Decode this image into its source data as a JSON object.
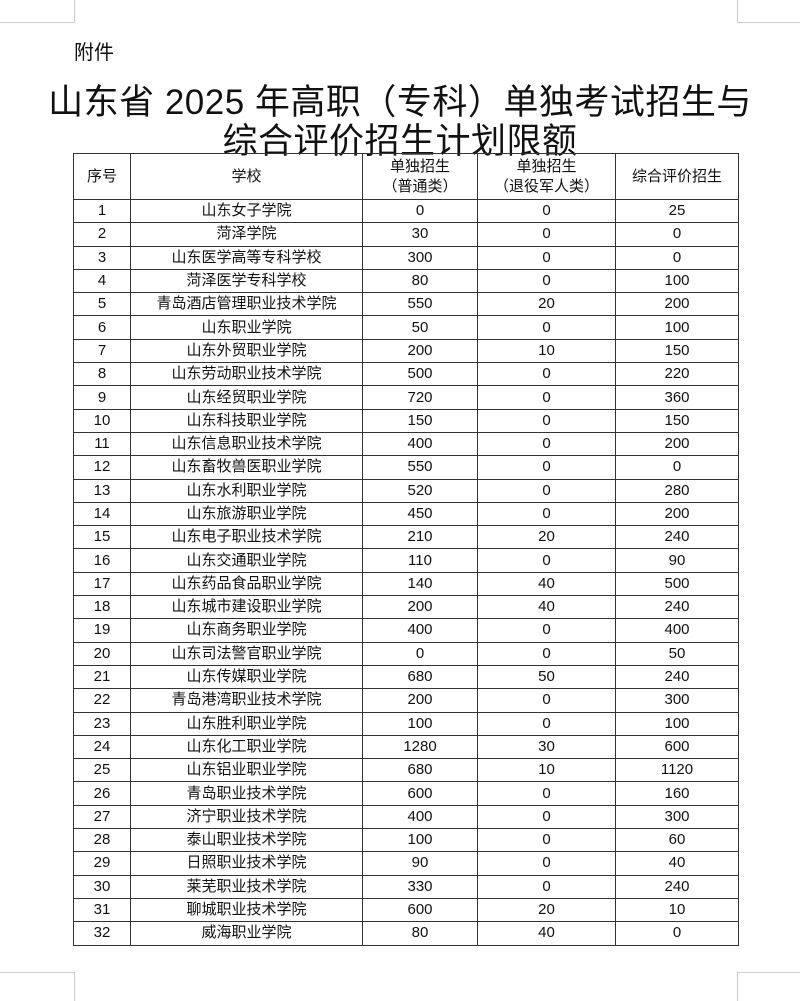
{
  "attachment_label": "附件",
  "title_line1": "山东省 2025 年高职（专科）单独考试招生与",
  "title_line2": "综合评价招生计划限额",
  "headers": [
    "序号",
    "学校",
    "单独招生\n（普通类）",
    "单独招生\n（退役军人类）",
    "综合评价招生"
  ],
  "rows": [
    [
      "1",
      "山东女子学院",
      "0",
      "0",
      "25"
    ],
    [
      "2",
      "菏泽学院",
      "30",
      "0",
      "0"
    ],
    [
      "3",
      "山东医学高等专科学校",
      "300",
      "0",
      "0"
    ],
    [
      "4",
      "菏泽医学专科学校",
      "80",
      "0",
      "100"
    ],
    [
      "5",
      "青岛酒店管理职业技术学院",
      "550",
      "20",
      "200"
    ],
    [
      "6",
      "山东职业学院",
      "50",
      "0",
      "100"
    ],
    [
      "7",
      "山东外贸职业学院",
      "200",
      "10",
      "150"
    ],
    [
      "8",
      "山东劳动职业技术学院",
      "500",
      "0",
      "220"
    ],
    [
      "9",
      "山东经贸职业学院",
      "720",
      "0",
      "360"
    ],
    [
      "10",
      "山东科技职业学院",
      "150",
      "0",
      "150"
    ],
    [
      "11",
      "山东信息职业技术学院",
      "400",
      "0",
      "200"
    ],
    [
      "12",
      "山东畜牧兽医职业学院",
      "550",
      "0",
      "0"
    ],
    [
      "13",
      "山东水利职业学院",
      "520",
      "0",
      "280"
    ],
    [
      "14",
      "山东旅游职业学院",
      "450",
      "0",
      "200"
    ],
    [
      "15",
      "山东电子职业技术学院",
      "210",
      "20",
      "240"
    ],
    [
      "16",
      "山东交通职业学院",
      "110",
      "0",
      "90"
    ],
    [
      "17",
      "山东药品食品职业学院",
      "140",
      "40",
      "500"
    ],
    [
      "18",
      "山东城市建设职业学院",
      "200",
      "40",
      "240"
    ],
    [
      "19",
      "山东商务职业学院",
      "400",
      "0",
      "400"
    ],
    [
      "20",
      "山东司法警官职业学院",
      "0",
      "0",
      "50"
    ],
    [
      "21",
      "山东传媒职业学院",
      "680",
      "50",
      "240"
    ],
    [
      "22",
      "青岛港湾职业技术学院",
      "200",
      "0",
      "300"
    ],
    [
      "23",
      "山东胜利职业学院",
      "100",
      "0",
      "100"
    ],
    [
      "24",
      "山东化工职业学院",
      "1280",
      "30",
      "600"
    ],
    [
      "25",
      "山东铝业职业学院",
      "680",
      "10",
      "1120"
    ],
    [
      "26",
      "青岛职业技术学院",
      "600",
      "0",
      "160"
    ],
    [
      "27",
      "济宁职业技术学院",
      "400",
      "0",
      "300"
    ],
    [
      "28",
      "泰山职业技术学院",
      "100",
      "0",
      "60"
    ],
    [
      "29",
      "日照职业技术学院",
      "90",
      "0",
      "40"
    ],
    [
      "30",
      "莱芜职业技术学院",
      "330",
      "0",
      "240"
    ],
    [
      "31",
      "聊城职业技术学院",
      "600",
      "20",
      "10"
    ],
    [
      "32",
      "威海职业学院",
      "80",
      "40",
      "0"
    ]
  ]
}
